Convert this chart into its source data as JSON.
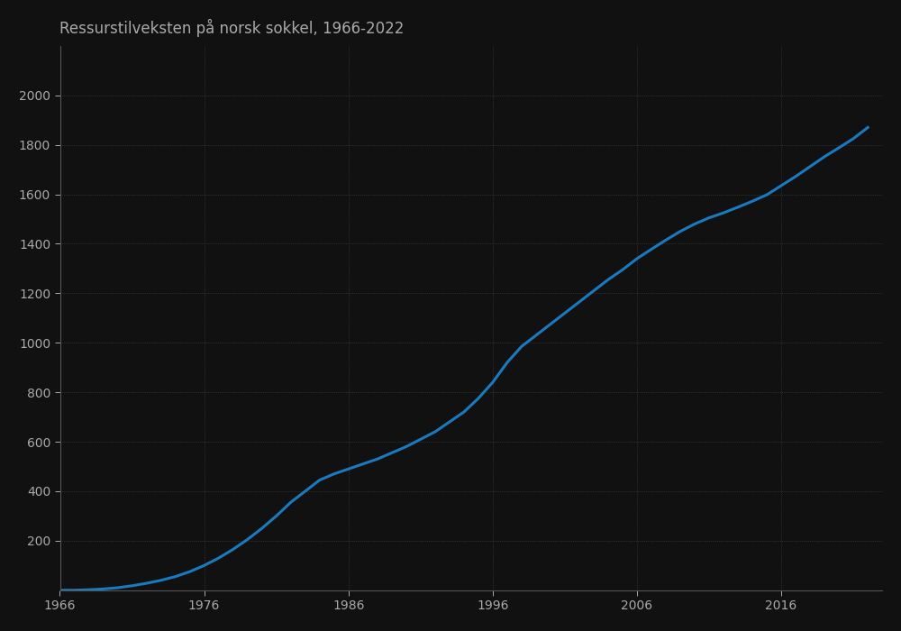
{
  "title": "Ressurstilveksten på norsk sokkel, 1966-2022",
  "line_color": "#1a7abf",
  "line_width": 2.2,
  "background_color": "#111111",
  "plot_bg_color": "#111111",
  "grid_color": "#555555",
  "text_color": "#aaaaaa",
  "title_color": "#aaaaaa",
  "title_fontsize": 12,
  "tick_fontsize": 10,
  "xlim": [
    1966,
    2023
  ],
  "ylim": [
    0,
    2200
  ],
  "yticks": [
    200,
    400,
    600,
    800,
    1000,
    1200,
    1400,
    1600,
    1800,
    2000
  ],
  "xticks": [
    1966,
    1976,
    1986,
    1996,
    2006,
    2016
  ],
  "years": [
    1966,
    1967,
    1968,
    1969,
    1970,
    1971,
    1972,
    1973,
    1974,
    1975,
    1976,
    1977,
    1978,
    1979,
    1980,
    1981,
    1982,
    1983,
    1984,
    1985,
    1986,
    1987,
    1988,
    1989,
    1990,
    1991,
    1992,
    1993,
    1994,
    1995,
    1996,
    1997,
    1998,
    1999,
    2000,
    2001,
    2002,
    2003,
    2004,
    2005,
    2006,
    2007,
    2008,
    2009,
    2010,
    2011,
    2012,
    2013,
    2014,
    2015,
    2016,
    2017,
    2018,
    2019,
    2020,
    2021,
    2022
  ],
  "values": [
    0,
    0,
    2,
    5,
    10,
    18,
    28,
    40,
    55,
    75,
    100,
    130,
    165,
    205,
    250,
    300,
    355,
    400,
    445,
    470,
    490,
    510,
    530,
    555,
    580,
    610,
    640,
    680,
    720,
    775,
    840,
    920,
    985,
    1030,
    1075,
    1120,
    1165,
    1210,
    1255,
    1295,
    1340,
    1378,
    1415,
    1450,
    1480,
    1505,
    1525,
    1548,
    1572,
    1598,
    1635,
    1672,
    1712,
    1752,
    1788,
    1825,
    1870
  ]
}
